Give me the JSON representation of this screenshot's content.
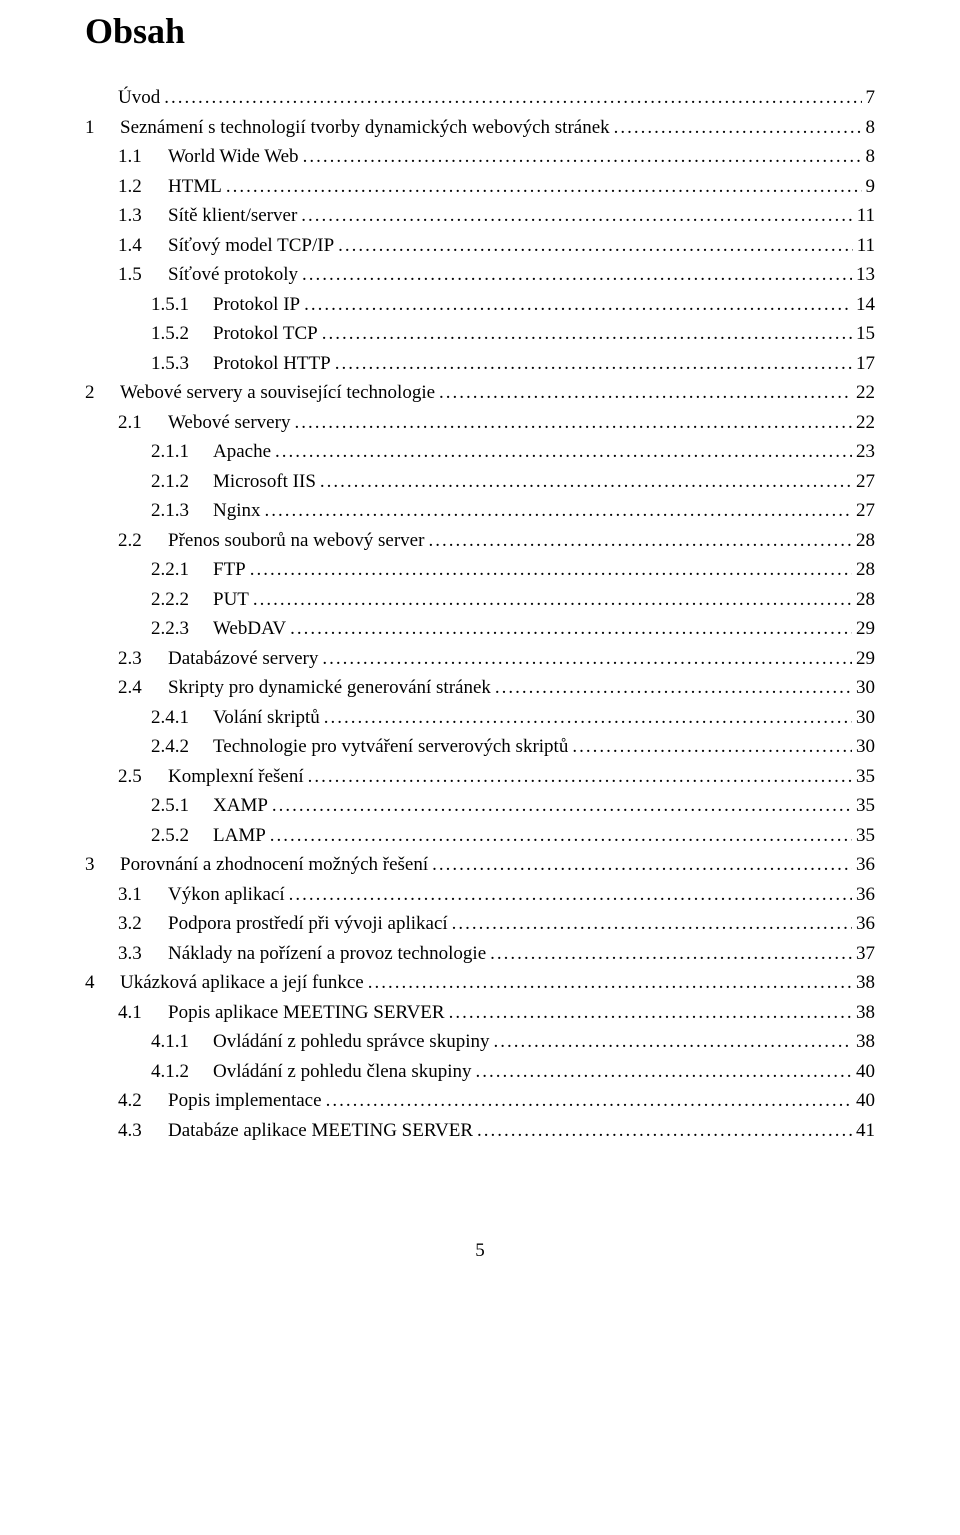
{
  "title": "Obsah",
  "page_number": "5",
  "colors": {
    "text": "#000000",
    "background": "#ffffff"
  },
  "typography": {
    "family": "Times New Roman",
    "title_fontsize_pt": 27,
    "body_fontsize_pt": 14
  },
  "toc": [
    {
      "level": 0,
      "num": "",
      "label": "Úvod",
      "page": "7"
    },
    {
      "level": 1,
      "num": "1",
      "label": "Seznámení s technologií tvorby dynamických webových stránek",
      "page": "8"
    },
    {
      "level": 2,
      "num": "1.1",
      "label": "World Wide Web",
      "page": "8"
    },
    {
      "level": 2,
      "num": "1.2",
      "label": "HTML",
      "page": "9"
    },
    {
      "level": 2,
      "num": "1.3",
      "label": "Sítě klient/server",
      "page": "11"
    },
    {
      "level": 2,
      "num": "1.4",
      "label": "Síťový model TCP/IP",
      "page": "11"
    },
    {
      "level": 2,
      "num": "1.5",
      "label": "Síťové protokoly",
      "page": "13"
    },
    {
      "level": 3,
      "num": "1.5.1",
      "label": "Protokol IP",
      "page": "14"
    },
    {
      "level": 3,
      "num": "1.5.2",
      "label": "Protokol TCP",
      "page": "15"
    },
    {
      "level": 3,
      "num": "1.5.3",
      "label": "Protokol HTTP",
      "page": "17"
    },
    {
      "level": 1,
      "num": "2",
      "label": "Webové servery a související technologie",
      "page": "22"
    },
    {
      "level": 2,
      "num": "2.1",
      "label": "Webové servery",
      "page": "22"
    },
    {
      "level": 3,
      "num": "2.1.1",
      "label": "Apache",
      "page": "23"
    },
    {
      "level": 3,
      "num": "2.1.2",
      "label": "Microsoft IIS",
      "page": "27"
    },
    {
      "level": 3,
      "num": "2.1.3",
      "label": "Nginx",
      "page": "27"
    },
    {
      "level": 2,
      "num": "2.2",
      "label": "Přenos souborů na webový server",
      "page": "28"
    },
    {
      "level": 3,
      "num": "2.2.1",
      "label": "FTP",
      "page": "28"
    },
    {
      "level": 3,
      "num": "2.2.2",
      "label": "PUT",
      "page": "28"
    },
    {
      "level": 3,
      "num": "2.2.3",
      "label": "WebDAV",
      "page": "29"
    },
    {
      "level": 2,
      "num": "2.3",
      "label": "Databázové servery",
      "page": "29"
    },
    {
      "level": 2,
      "num": "2.4",
      "label": "Skripty pro dynamické generování stránek",
      "page": "30"
    },
    {
      "level": 3,
      "num": "2.4.1",
      "label": "Volání skriptů",
      "page": "30"
    },
    {
      "level": 3,
      "num": "2.4.2",
      "label": "Technologie pro vytváření serverových skriptů",
      "page": "30"
    },
    {
      "level": 2,
      "num": "2.5",
      "label": "Komplexní řešení",
      "page": "35"
    },
    {
      "level": 3,
      "num": "2.5.1",
      "label": "XAMP",
      "page": "35"
    },
    {
      "level": 3,
      "num": "2.5.2",
      "label": "LAMP",
      "page": "35"
    },
    {
      "level": 1,
      "num": "3",
      "label": "Porovnání a zhodnocení možných řešení",
      "page": "36"
    },
    {
      "level": 2,
      "num": "3.1",
      "label": "Výkon aplikací",
      "page": "36"
    },
    {
      "level": 2,
      "num": "3.2",
      "label": "Podpora prostředí při vývoji aplikací",
      "page": "36"
    },
    {
      "level": 2,
      "num": "3.3",
      "label": "Náklady na pořízení a provoz technologie",
      "page": "37"
    },
    {
      "level": 1,
      "num": "4",
      "label": "Ukázková aplikace a její funkce",
      "page": "38"
    },
    {
      "level": 2,
      "num": "4.1",
      "label": "Popis aplikace MEETING SERVER",
      "page": "38"
    },
    {
      "level": 3,
      "num": "4.1.1",
      "label": "Ovládání z pohledu správce skupiny",
      "page": "38"
    },
    {
      "level": 3,
      "num": "4.1.2",
      "label": "Ovládání z pohledu člena skupiny",
      "page": "40"
    },
    {
      "level": 2,
      "num": "4.2",
      "label": "Popis implementace",
      "page": "40"
    },
    {
      "level": 2,
      "num": "4.3",
      "label": "Databáze aplikace MEETING SERVER",
      "page": "41"
    }
  ]
}
